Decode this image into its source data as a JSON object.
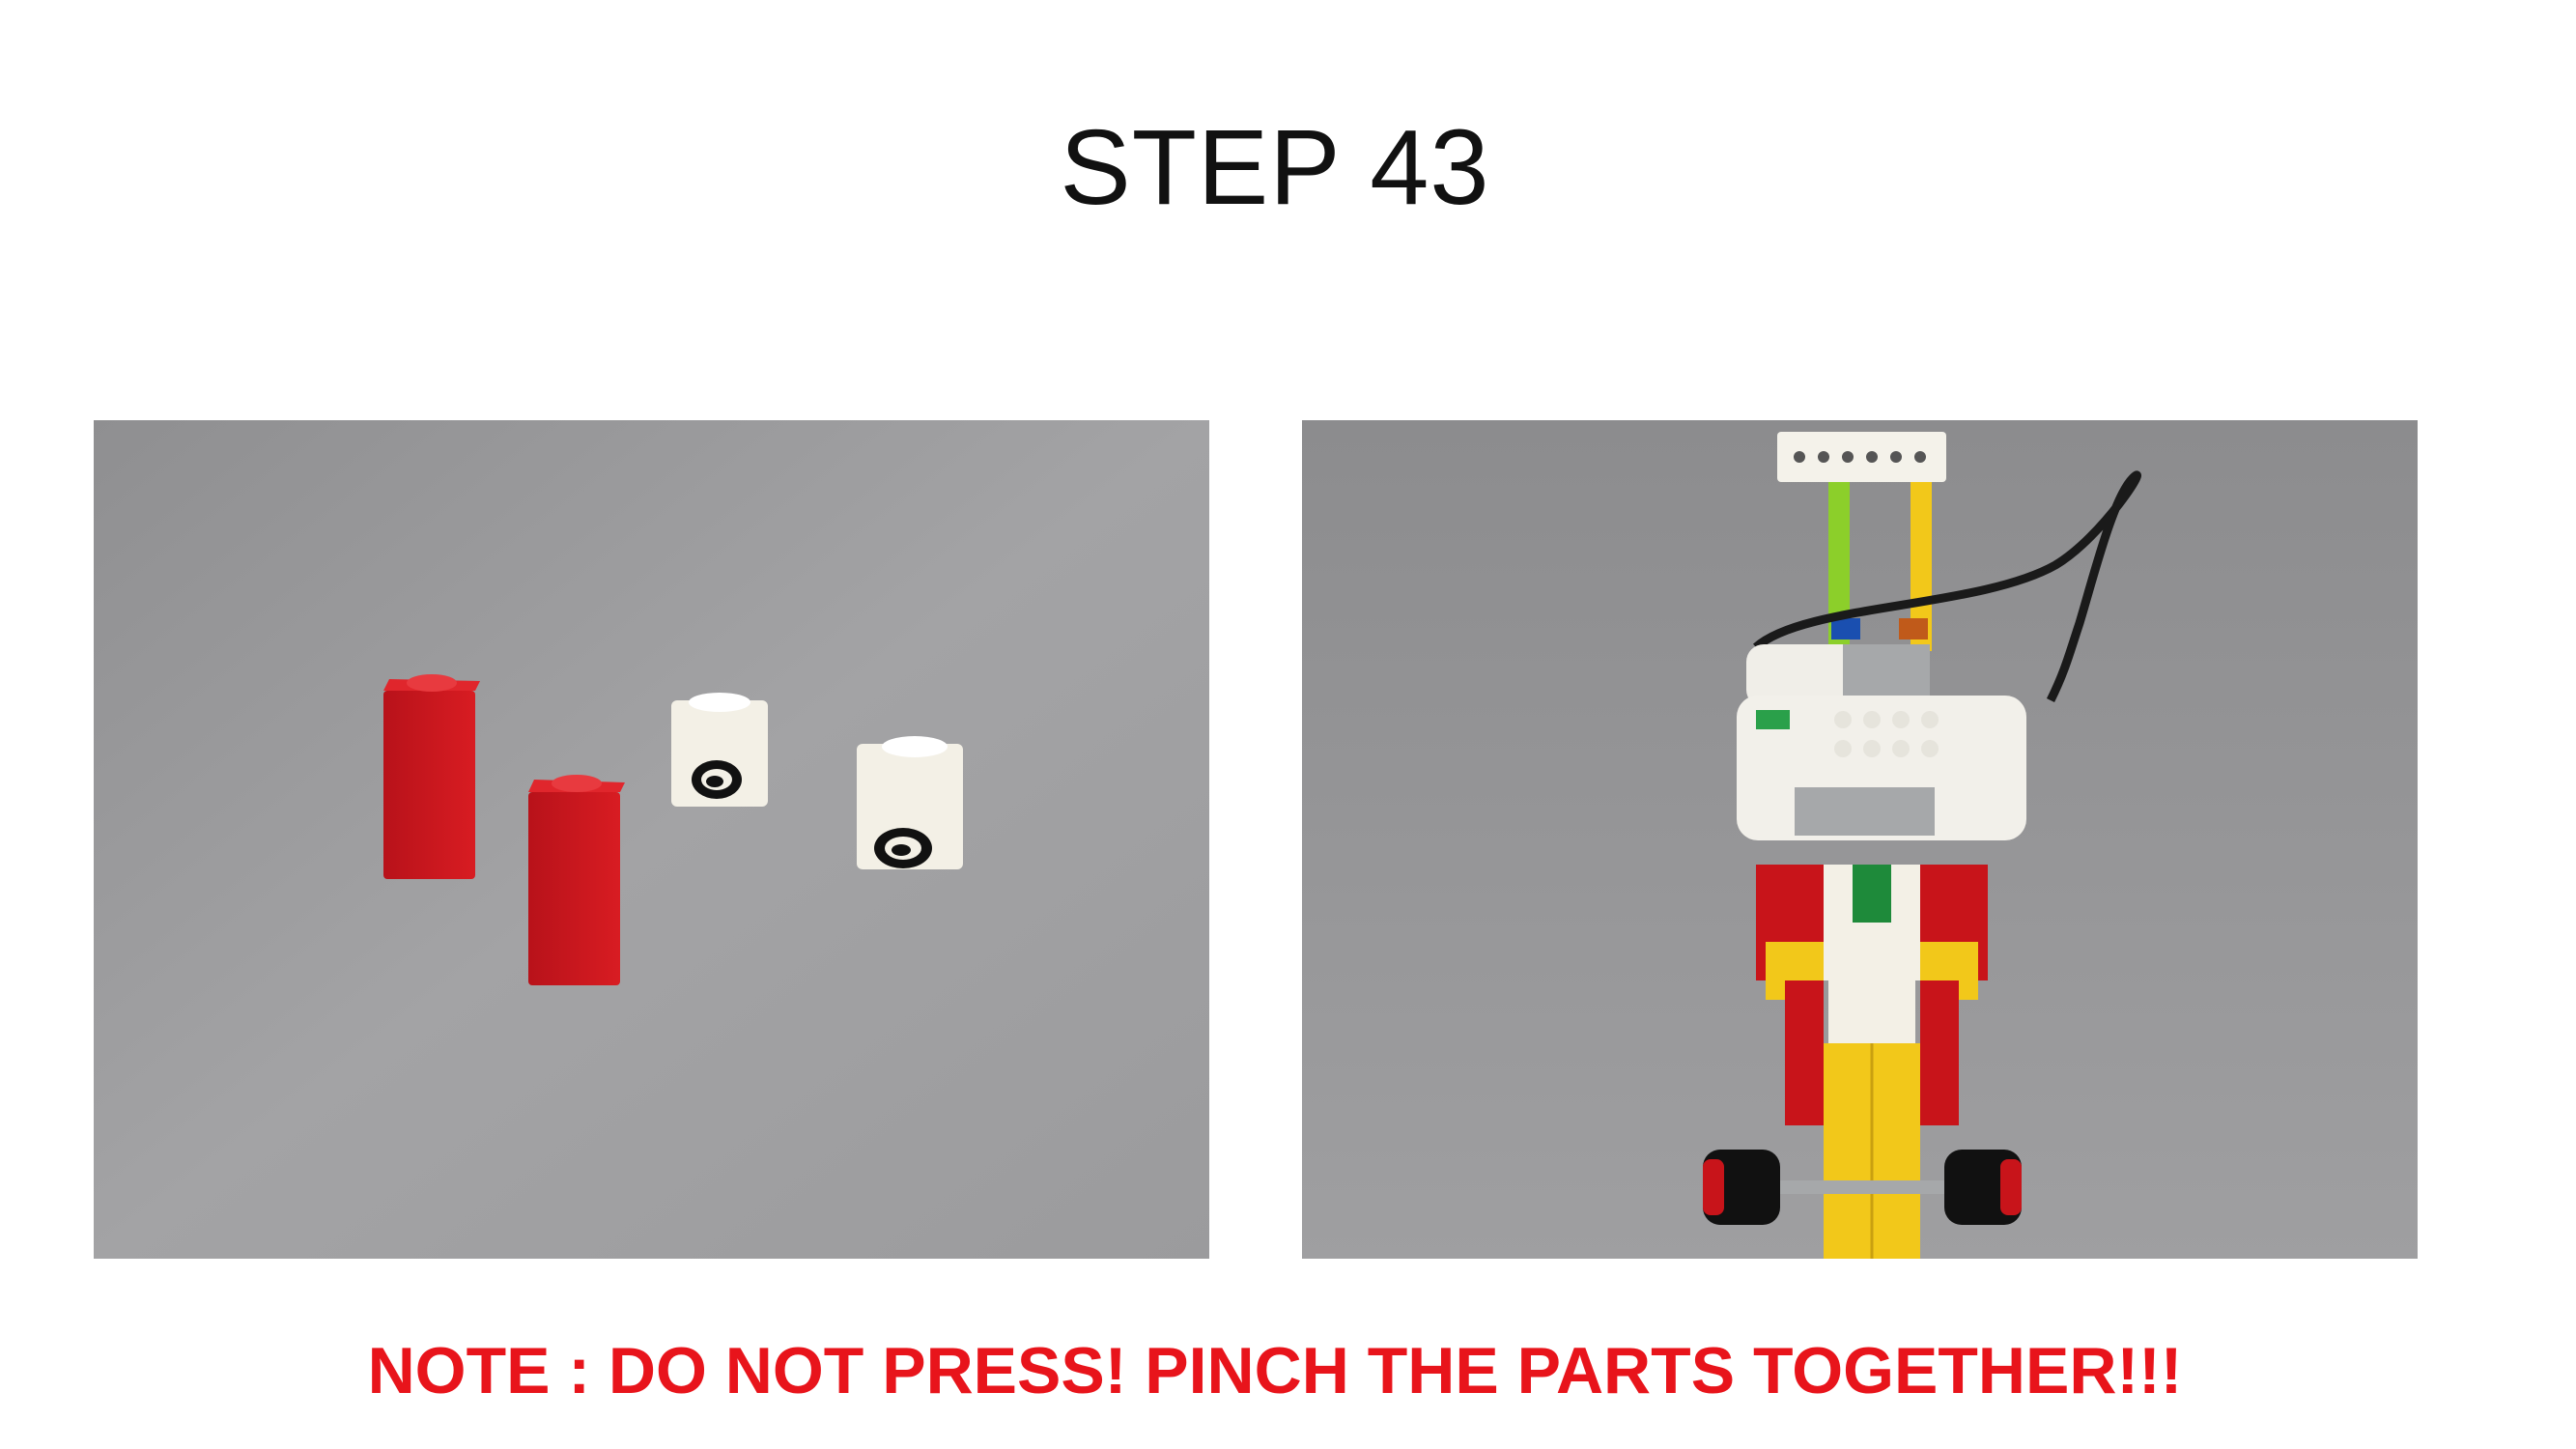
{
  "slide": {
    "title": "STEP 43",
    "note": "NOTE : DO NOT PRESS! PINCH THE PARTS TOGETHER!!!"
  },
  "photos": {
    "left": {
      "subject": "loose-bricks-photo"
    },
    "right": {
      "subject": "assembled-model-photo"
    }
  },
  "colors": {
    "note_text": "#e8141b",
    "brick_red": "#c8141a",
    "brick_white": "#f2efe6",
    "brick_yellow": "#f2c81a",
    "brick_green": "#1e8a3a",
    "brick_lime": "#8ccf2a",
    "background_gray": "#9a9a9c"
  }
}
